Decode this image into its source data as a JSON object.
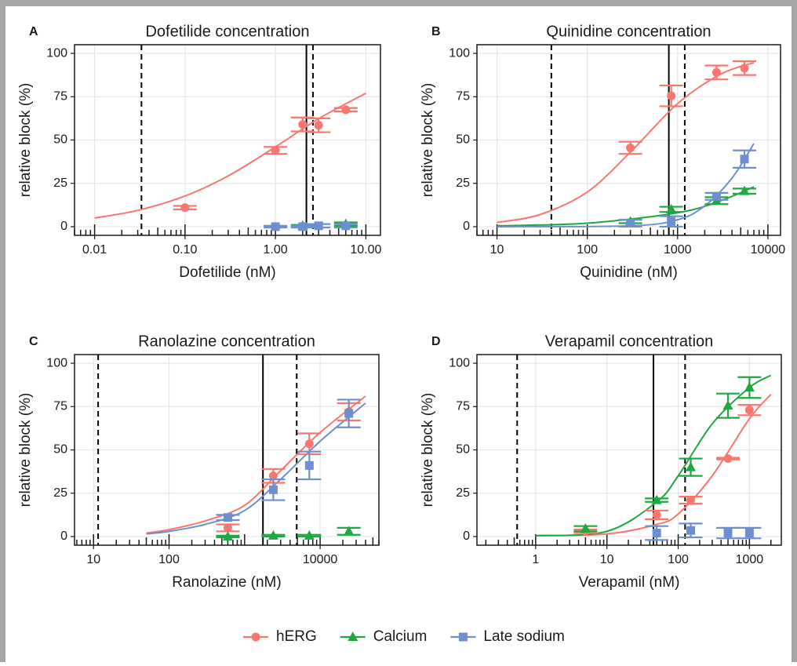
{
  "chart_data": [
    {
      "type": "scatter",
      "panel": "A",
      "title": "Dofetilide concentration",
      "xlabel": "Dofetilide (nM)",
      "ylabel": "relative block (%)",
      "log_x": true,
      "grid": true,
      "xlim": [
        0.006,
        14.5
      ],
      "ylim": [
        -5,
        105
      ],
      "xticks": [
        0.01,
        {
          "value": 0.1,
          "label": "0.10"
        },
        {
          "value": 1,
          "label": "1.00"
        },
        {
          "value": 10,
          "label": "10.00"
        }
      ],
      "yticks": [
        0,
        25,
        50,
        75,
        100
      ],
      "vlines": [
        {
          "x": 0.033,
          "dashed": true
        },
        {
          "x": 2.2,
          "dashed": false
        },
        {
          "x": 2.6,
          "dashed": true
        }
      ],
      "series": [
        {
          "name": "hERG",
          "color": "#F8766D",
          "marker": "circle",
          "x": [
            0.1,
            1,
            2,
            3,
            6
          ],
          "values": [
            11,
            44,
            59,
            58.5,
            67.5
          ],
          "errors": [
            1,
            2,
            4,
            4,
            1
          ],
          "curve_x": [
            0.01,
            0.03,
            0.1,
            0.3,
            1,
            3,
            10
          ],
          "curve_y": [
            5,
            9.4,
            17.7,
            29.3,
            46,
            62.3,
            77
          ]
        },
        {
          "name": "Calcium",
          "color": "#1FA83F",
          "marker": "triangle",
          "x": [
            2,
            6
          ],
          "values": [
            0.5,
            1.5
          ],
          "errors": [
            0.5,
            1
          ],
          "curve_x": [],
          "curve_y": []
        },
        {
          "name": "Late sodium",
          "color": "#6D8FD0",
          "marker": "square",
          "x": [
            1,
            2,
            3,
            6
          ],
          "values": [
            0,
            0,
            0.5,
            0.5
          ],
          "errors": [
            0.5,
            0.5,
            1,
            1
          ],
          "curve_x": [],
          "curve_y": []
        }
      ]
    },
    {
      "type": "scatter",
      "panel": "B",
      "title": "Quinidine concentration",
      "xlabel": "Quinidine (nM)",
      "ylabel": "relative block (%)",
      "log_x": true,
      "grid": true,
      "xlim": [
        6,
        13800
      ],
      "ylim": [
        -5,
        105
      ],
      "xticks": [
        10,
        100,
        1000,
        10000
      ],
      "yticks": [
        0,
        25,
        50,
        75,
        100
      ],
      "vlines": [
        {
          "x": 40,
          "dashed": true
        },
        {
          "x": 800,
          "dashed": false
        },
        {
          "x": 1200,
          "dashed": true
        }
      ],
      "series": [
        {
          "x": [
            300,
            850,
            2700,
            5500
          ],
          "values": [
            45.5,
            75.5,
            89,
            91.5
          ],
          "errors": [
            3.5,
            6,
            4,
            4
          ],
          "curve_x": [
            10,
            30,
            100,
            300,
            1000,
            3000,
            7000
          ],
          "curve_y": [
            2.4,
            7,
            20,
            43,
            71,
            88,
            94.6
          ]
        },
        {
          "x": [
            300,
            850,
            2700,
            5500
          ],
          "values": [
            3,
            10,
            15,
            20.5
          ],
          "errors": [
            1,
            1.5,
            2,
            1.5
          ],
          "curve_x": [
            10,
            100,
            1000,
            3000,
            7000
          ],
          "curve_y": [
            0.5,
            2,
            8,
            15,
            23
          ]
        },
        {
          "x": [
            300,
            850,
            2700,
            5500
          ],
          "values": [
            2,
            3,
            17.5,
            39
          ],
          "errors": [
            2,
            3,
            2,
            5
          ],
          "curve_x": [
            10,
            300,
            1000,
            2000,
            4000,
            7000
          ],
          "curve_y": [
            0,
            0.5,
            4,
            12,
            28,
            48
          ]
        }
      ]
    },
    {
      "type": "scatter",
      "panel": "C",
      "title": "Ranolazine concentration",
      "xlabel": "Ranolazine (nM)",
      "ylabel": "relative block (%)",
      "log_x": true,
      "grid": true,
      "xlim": [
        5.6,
        60000
      ],
      "ylim": [
        -5,
        105
      ],
      "xticks": [
        10,
        100,
        10000
      ],
      "yticks": [
        0,
        25,
        50,
        75,
        100
      ],
      "vlines": [
        {
          "x": 11.5,
          "dashed": true
        },
        {
          "x": 1750,
          "dashed": false
        },
        {
          "x": 4900,
          "dashed": true
        }
      ],
      "series": [
        {
          "x": [
            600,
            2400,
            7200,
            24000
          ],
          "values": [
            5,
            35,
            53.5,
            72
          ],
          "errors": [
            2,
            4,
            6,
            5
          ],
          "curve_x": [
            50,
            100,
            300,
            1000,
            3000,
            10000,
            40000
          ],
          "curve_y": [
            2,
            4,
            9,
            18,
            38,
            60,
            81
          ]
        },
        {
          "x": [
            600,
            2400,
            7200,
            24000
          ],
          "values": [
            0,
            0.5,
            0.5,
            3
          ],
          "errors": [
            0.5,
            0.5,
            0.5,
            2
          ],
          "curve_x": [],
          "curve_y": []
        },
        {
          "x": [
            600,
            2400,
            7200,
            24000
          ],
          "values": [
            11,
            27,
            41,
            71
          ],
          "errors": [
            1.5,
            6,
            8,
            8
          ],
          "curve_x": [
            50,
            100,
            300,
            1000,
            3000,
            10000,
            40000
          ],
          "curve_y": [
            1.5,
            3,
            7,
            15,
            33,
            55,
            77
          ]
        }
      ]
    },
    {
      "type": "scatter",
      "panel": "D",
      "title": "Verapamil concentration",
      "xlabel": "Verapamil (nM)",
      "ylabel": "relative block (%)",
      "log_x": true,
      "grid": true,
      "xlim": [
        0.15,
        2800
      ],
      "ylim": [
        -5,
        105
      ],
      "xticks": [
        1,
        10,
        100,
        1000
      ],
      "yticks": [
        0,
        25,
        50,
        75,
        100
      ],
      "vlines": [
        {
          "x": 0.55,
          "dashed": true
        },
        {
          "x": 45,
          "dashed": false
        },
        {
          "x": 125,
          "dashed": true
        }
      ],
      "series": [
        {
          "x": [
            5,
            50,
            150,
            500,
            1000
          ],
          "values": [
            3,
            12.5,
            21,
            45,
            73
          ],
          "errors": [
            1,
            2.5,
            2,
            0.5,
            3
          ],
          "curve_x": [
            1,
            10,
            50,
            100,
            300,
            1000,
            2000
          ],
          "curve_y": [
            0.5,
            1.5,
            7,
            13,
            35,
            68,
            82
          ]
        },
        {
          "x": [
            5,
            50,
            150,
            500,
            1000
          ],
          "values": [
            4.5,
            21,
            40,
            75.5,
            86
          ],
          "errors": [
            1.5,
            1,
            5,
            7,
            6
          ],
          "curve_x": [
            1,
            10,
            50,
            100,
            300,
            1000,
            2000
          ],
          "curve_y": [
            0.5,
            3,
            20,
            35,
            65,
            86,
            93
          ]
        },
        {
          "x": [
            50,
            150,
            500,
            1000
          ],
          "values": [
            2,
            3.5,
            2,
            2
          ],
          "errors": [
            4,
            4,
            3,
            3
          ],
          "curve_x": [],
          "curve_y": []
        }
      ]
    }
  ]
}
